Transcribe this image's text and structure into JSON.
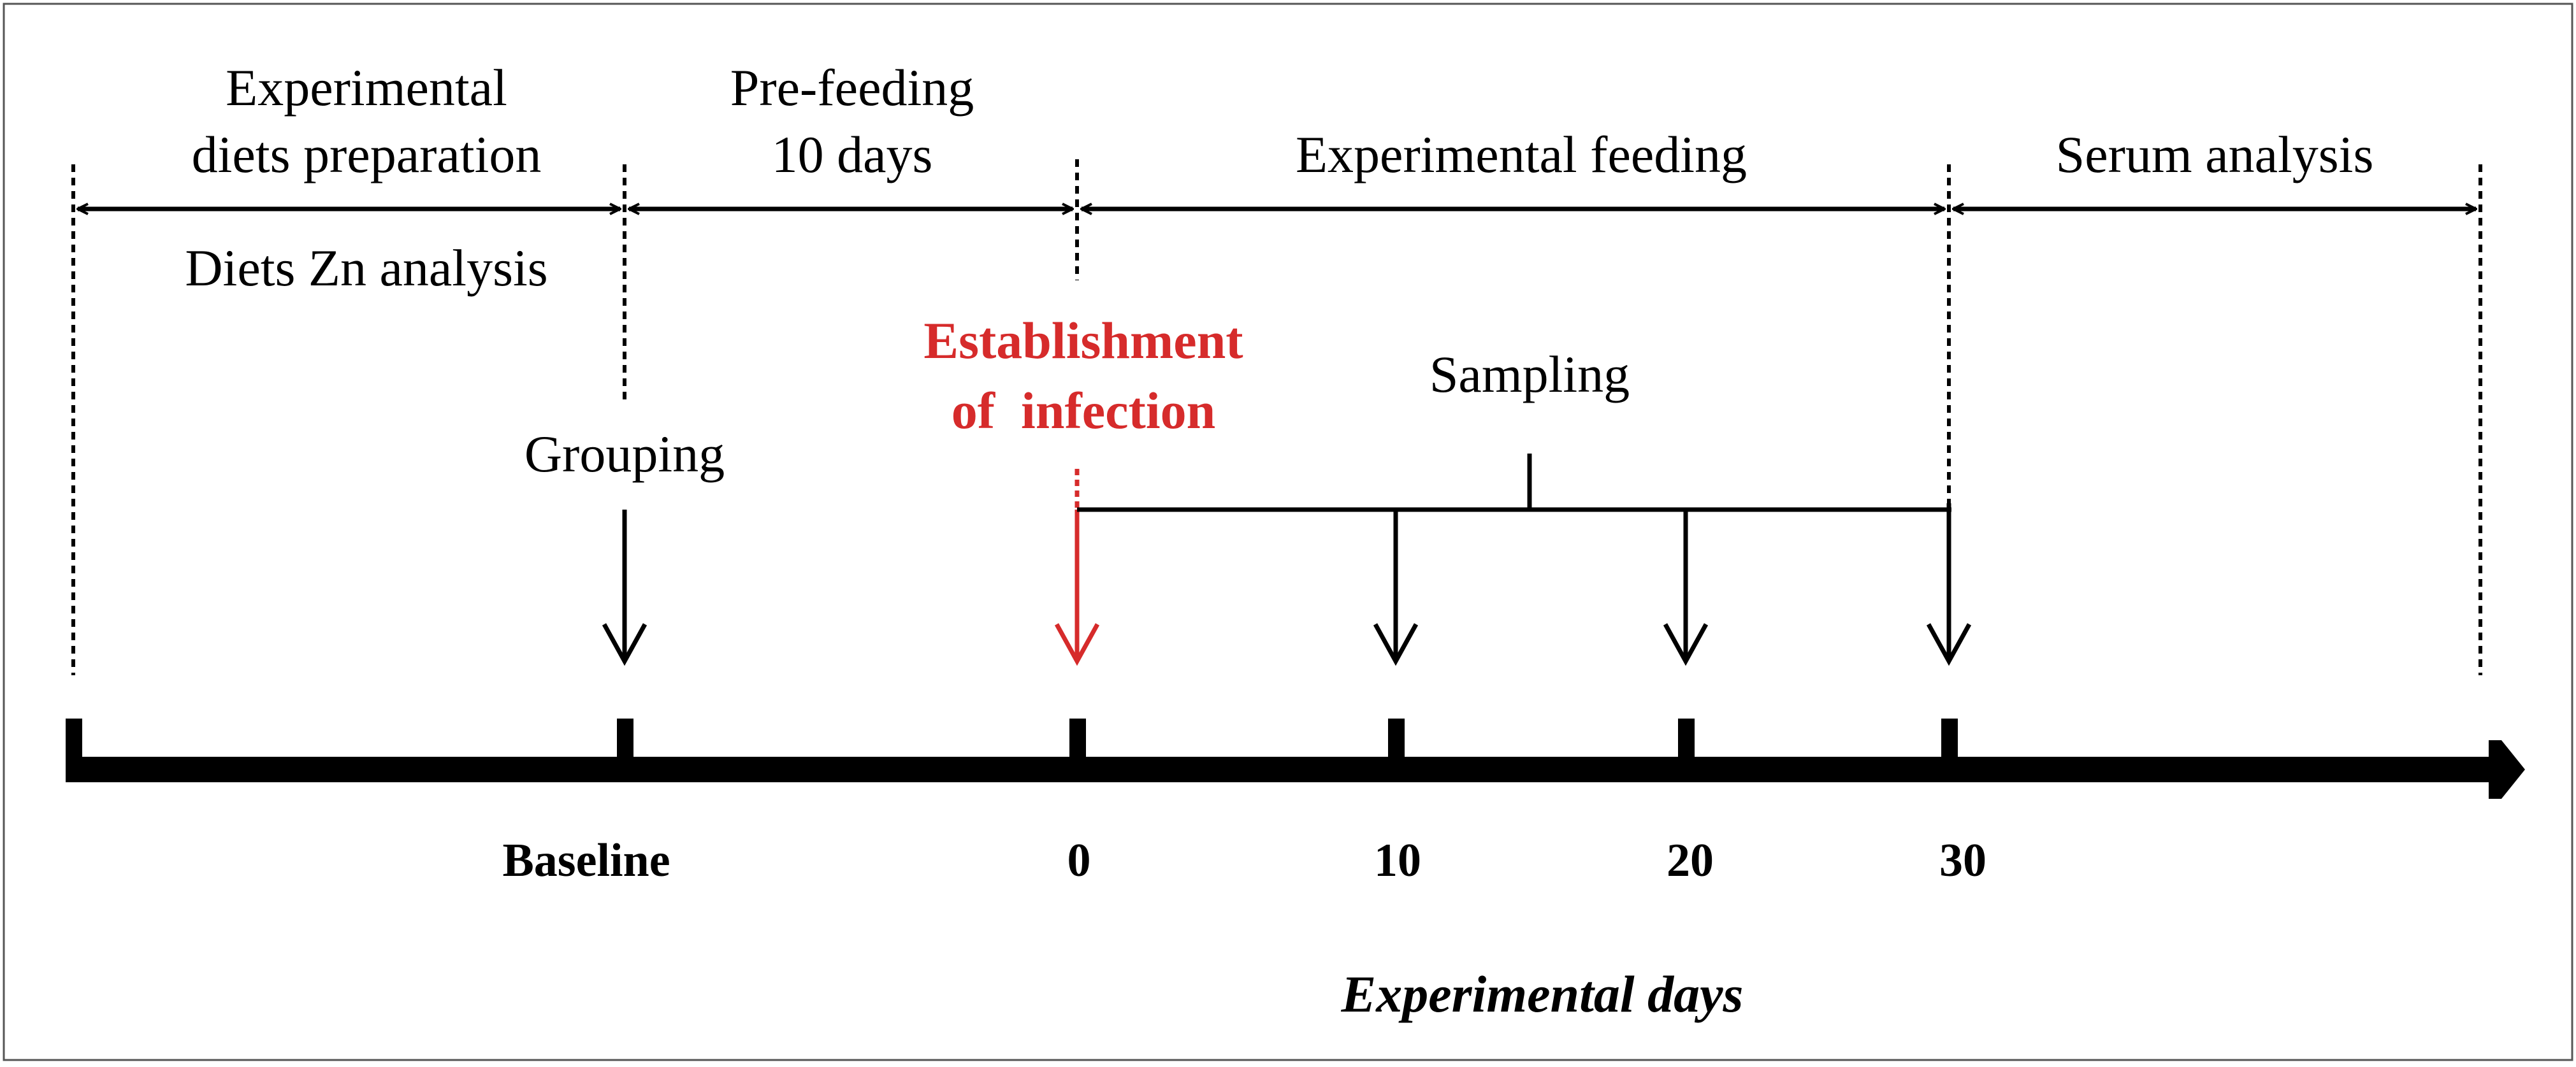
{
  "diagram": {
    "phases": {
      "preparation_line1": "Experimental",
      "preparation_line2": "diets preparation",
      "preparation_below": "Diets Zn analysis",
      "prefeeding_line1": "Pre-feeding",
      "prefeeding_line2": "10 days",
      "feeding": "Experimental feeding",
      "serum": "Serum analysis"
    },
    "events": {
      "grouping": "Grouping",
      "infection_line1": "Establishment",
      "infection_line2": "of  infection",
      "sampling": "Sampling"
    },
    "axis": {
      "ticks": [
        "Baseline",
        "0",
        "10",
        "20",
        "30"
      ],
      "label": "Experimental days"
    },
    "colors": {
      "ink": "#000000",
      "highlight": "#d62b2b",
      "frame": "#555555"
    }
  }
}
